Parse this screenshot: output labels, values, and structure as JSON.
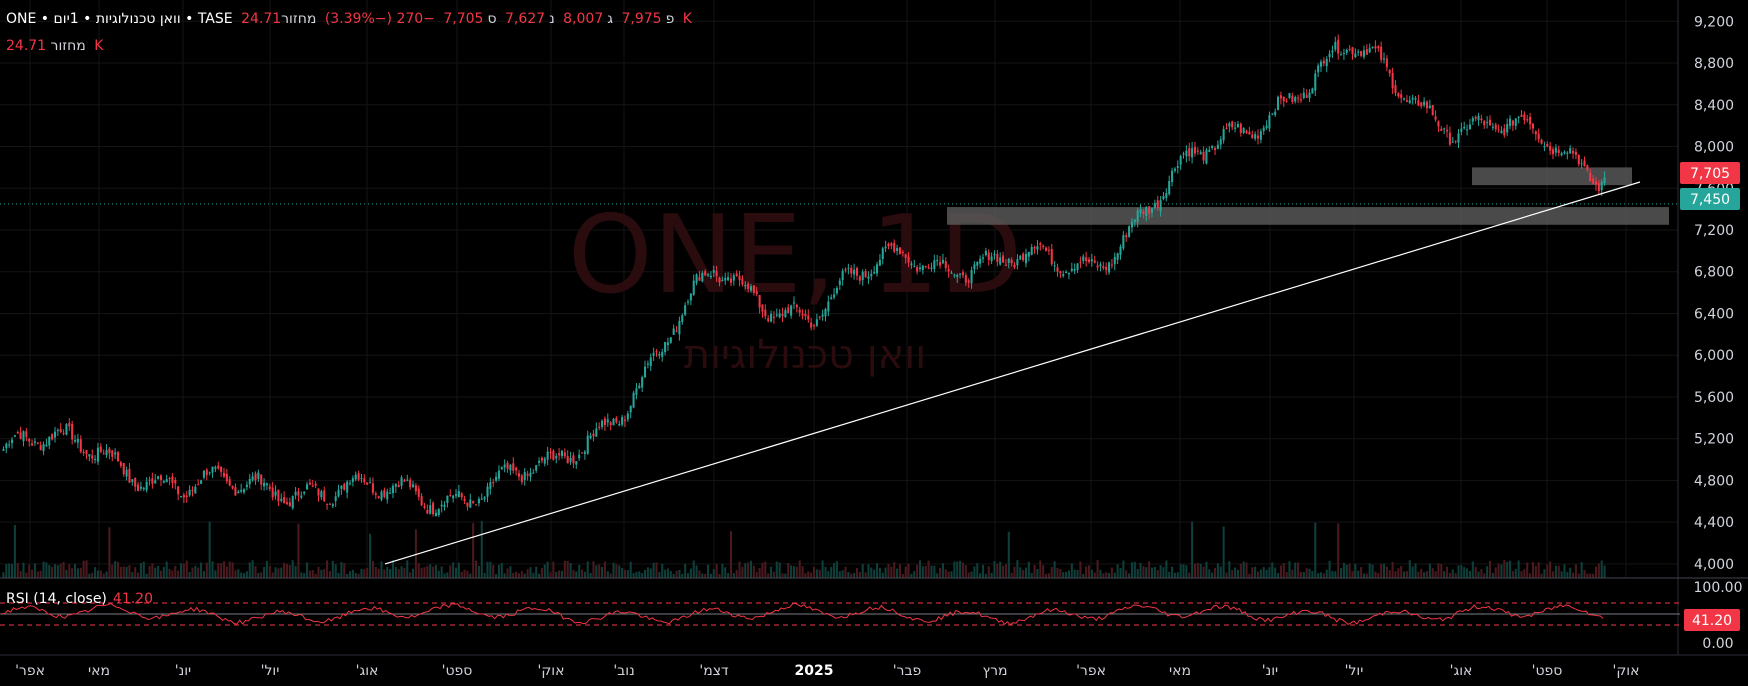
{
  "header": {
    "symbol_line": "ONE • וואן טכנולוגיות • 1יום • TASE",
    "o_label": "פ",
    "o_value": "7,975",
    "h_label": "ג",
    "h_value": "8,007",
    "l_label": "נ",
    "l_value": "7,627",
    "c_label": "ס",
    "c_value": "7,705",
    "change": "−270 (−3.39%)",
    "volume_label": "מחזור",
    "volume_value": "24.71 K"
  },
  "volume_row": {
    "label": "מחזור",
    "value": "24.71 K"
  },
  "watermark": {
    "line1": "ONE, 1D",
    "line2": "וואן טכנולוגיות"
  },
  "rsi": {
    "label": "RSI (14, close)",
    "value": "41.20"
  },
  "price_badges": {
    "last": "7,705",
    "level": "7,450"
  },
  "rsi_axis": {
    "top": "100.00",
    "current": "41.20",
    "bottom": "0.00"
  },
  "colors": {
    "up": "#26a69a",
    "down": "#f23645",
    "rsi": "#f23645",
    "zone": "#5d5d5d",
    "level": "#26a69a"
  },
  "chart_data": {
    "type": "candlestick",
    "y_ticks": [
      "4,000",
      "4,400",
      "4,800",
      "5,200",
      "5,600",
      "6,000",
      "6,400",
      "6,800",
      "7,200",
      "7,600",
      "8,000",
      "8,400",
      "8,800",
      "9,200"
    ],
    "ylim": [
      3980,
      9270
    ],
    "x_ticks": [
      "'אפר",
      "מאי",
      "'יונ",
      "'יול",
      "'אוג",
      "'ספט",
      "'אוק",
      "'נוב",
      "'דצמ",
      "2025",
      "'פבר",
      "מרץ",
      "'אפר",
      "מאי",
      "'יונ",
      "'יול",
      "'אוג",
      "'ספט",
      "'אוק"
    ],
    "trend_line": {
      "from": {
        "month": "'אוג",
        "price": 4000
      },
      "to": {
        "month": "'ספט",
        "price": 7660
      }
    },
    "support_zones": [
      {
        "price_low": 7250,
        "price_high": 7420,
        "label": "7,450"
      },
      {
        "price_low": 7630,
        "price_high": 7800
      }
    ],
    "last_close": 7705,
    "monthly_closes": [
      {
        "month": "'אפר",
        "close": 5100
      },
      {
        "month": "מאי",
        "close": 5150
      },
      {
        "month": "'יונ",
        "close": 4650
      },
      {
        "month": "'יול",
        "close": 4800
      },
      {
        "month": "'אוג",
        "close": 4650
      },
      {
        "month": "'ספט",
        "close": 4700
      },
      {
        "month": "'אוק",
        "close": 4850
      },
      {
        "month": "'נוב",
        "close": 5600
      },
      {
        "month": "'דצמ",
        "close": 6750
      },
      {
        "month": "2025",
        "close": 6400
      },
      {
        "month": "'פבר",
        "close": 7000
      },
      {
        "month": "מרץ",
        "close": 6850
      },
      {
        "month": "'אפר",
        "close": 6900
      },
      {
        "month": "מאי",
        "close": 7700
      },
      {
        "month": "'יונ",
        "close": 8400
      },
      {
        "month": "'יול",
        "close": 8900
      },
      {
        "month": "'אוג",
        "close": 8200
      },
      {
        "month": "'ספט",
        "close": 8050
      },
      {
        "month": "'אוק",
        "close": 7705
      }
    ]
  }
}
